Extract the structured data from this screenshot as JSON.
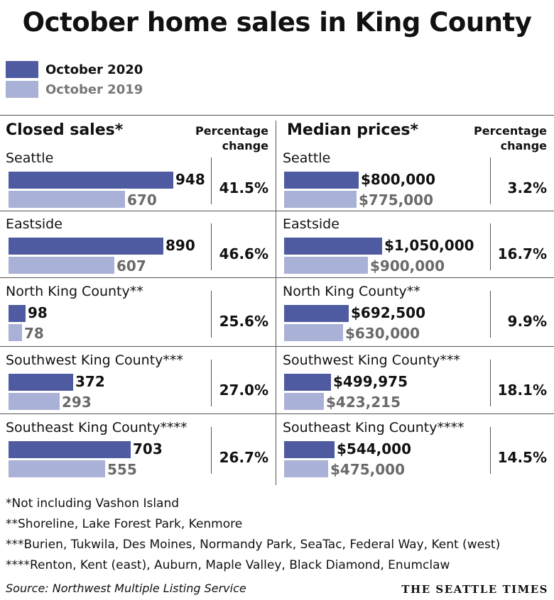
{
  "title": "October home sales in King County",
  "legend": [
    {
      "label": "October 2020",
      "color": "#4f5ba0"
    },
    {
      "label": "October 2019",
      "color": "#aab1d6"
    }
  ],
  "chart_data": [
    {
      "type": "bar",
      "title": "Closed sales*",
      "pct_header": "Percentage change",
      "categories": [
        "Seattle",
        "Eastside",
        "North King County**",
        "Southwest King County***",
        "Southeast King County****"
      ],
      "series": [
        {
          "name": "October 2020",
          "values": [
            948,
            890,
            98,
            372,
            703
          ],
          "labels": [
            "948",
            "890",
            "98",
            "372",
            "703"
          ]
        },
        {
          "name": "October 2019",
          "values": [
            670,
            607,
            78,
            293,
            555
          ],
          "labels": [
            "670",
            "607",
            "78",
            "293",
            "555"
          ]
        }
      ],
      "pct_change": [
        "41.5%",
        "46.6%",
        "25.6%",
        "27.0%",
        "26.7%"
      ],
      "xlim": [
        0,
        948
      ]
    },
    {
      "type": "bar",
      "title": "Median prices*",
      "pct_header": "Percentage change",
      "categories": [
        "Seattle",
        "Eastside",
        "North King County**",
        "Southwest King County***",
        "Southeast King County****"
      ],
      "series": [
        {
          "name": "October 2020",
          "values": [
            800000,
            1050000,
            692500,
            499975,
            544000
          ],
          "labels": [
            "$800,000",
            "$1,050,000",
            "$692,500",
            "$499,975",
            "$544,000"
          ]
        },
        {
          "name": "October 2019",
          "values": [
            775000,
            900000,
            630000,
            423215,
            475000
          ],
          "labels": [
            "$775,000",
            "$900,000",
            "$630,000",
            "$423,215",
            "$475,000"
          ]
        }
      ],
      "pct_change": [
        "3.2%",
        "16.7%",
        "9.9%",
        "18.1%",
        "14.5%"
      ],
      "xlim": [
        0,
        1050000
      ]
    }
  ],
  "footnotes": [
    "*Not including Vashon Island",
    "**Shoreline, Lake Forest Park, Kenmore",
    "***Burien, Tukwila, Des Moines, Normandy Park, SeaTac, Federal Way, Kent (west)",
    "****Renton, Kent (east), Auburn, Maple Valley, Black Diamond, Enumclaw"
  ],
  "source": "Source: Northwest Multiple Listing Service",
  "brand": "THE SEATTLE TIMES"
}
